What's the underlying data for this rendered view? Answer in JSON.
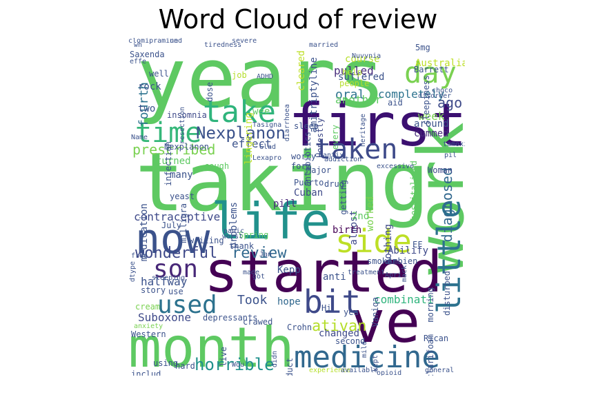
{
  "title": "Word Cloud of review",
  "words": [
    {
      "text": "years",
      "color": "#5ec962"
    },
    {
      "text": "taking",
      "color": "#5ec962"
    },
    {
      "text": "first",
      "color": "#3b0f70"
    },
    {
      "text": "work",
      "color": "#5ec962"
    },
    {
      "text": "started",
      "color": "#440154"
    },
    {
      "text": "ve",
      "color": "#440154"
    },
    {
      "text": "month",
      "color": "#5ec962"
    },
    {
      "text": "life",
      "color": "#21918c"
    },
    {
      "text": "now",
      "color": "#3b528b"
    },
    {
      "text": "medicine",
      "color": "#31688e"
    },
    {
      "text": "take",
      "color": "#2fb47c"
    },
    {
      "text": "time",
      "color": "#35b779"
    },
    {
      "text": "taken",
      "color": "#3e4a89"
    },
    {
      "text": "day",
      "color": "#7ad151"
    },
    {
      "text": "little",
      "color": "#2c728e"
    },
    {
      "text": "bit",
      "color": "#3e4989"
    },
    {
      "text": "used",
      "color": "#2c728e"
    },
    {
      "text": "side",
      "color": "#bddf26"
    },
    {
      "text": "son",
      "color": "#482878"
    },
    {
      "text": "Nexplanon",
      "color": "#3b528b"
    },
    {
      "text": "prescribed",
      "color": "#7ad151"
    },
    {
      "text": "wonderful",
      "color": "#3e4989"
    },
    {
      "text": "review",
      "color": "#31688e"
    },
    {
      "text": "horrible",
      "color": "#21918c"
    },
    {
      "text": "ativan",
      "color": "#b5de2b"
    },
    {
      "text": "diagnosed",
      "color": "#31688e"
    },
    {
      "text": "week",
      "color": "#7ad151"
    },
    {
      "text": "ago",
      "color": "#3e4a89"
    },
    {
      "text": "Took",
      "color": "#3b528b"
    },
    {
      "text": "oral",
      "color": "#2c728e"
    },
    {
      "text": "combinati",
      "color": "#2fb47c"
    },
    {
      "text": "completely",
      "color": "#2c728e"
    },
    {
      "text": "fourth",
      "color": "#2c728e"
    },
    {
      "text": "effect",
      "color": "#3b528b"
    },
    {
      "text": "another",
      "color": "#5ec962"
    },
    {
      "text": "pulled",
      "color": "#472d7b"
    },
    {
      "text": "rock",
      "color": "#3b528b"
    },
    {
      "text": "two",
      "color": "#3b528b"
    },
    {
      "text": "halfway",
      "color": "#3b528b"
    },
    {
      "text": "Suboxone",
      "color": "#3e4989"
    },
    {
      "text": "contraceptive",
      "color": "#3e4989"
    },
    {
      "text": "medication",
      "color": "#3b528b"
    },
    {
      "text": "nothing",
      "color": "#3e4989"
    },
    {
      "text": "pill",
      "color": "#482878"
    },
    {
      "text": "Abilify",
      "color": "#3e4989"
    },
    {
      "text": "hope",
      "color": "#31688e"
    },
    {
      "text": "changed",
      "color": "#3e4989"
    },
    {
      "text": "Kepp",
      "color": "#3b528b"
    },
    {
      "text": "anti",
      "color": "#3b528b"
    },
    {
      "text": "almost",
      "color": "#3e4989"
    },
    {
      "text": "turned",
      "color": "#5ec962"
    },
    {
      "text": "problems",
      "color": "#3b528b"
    },
    {
      "text": "many",
      "color": "#3b528b"
    },
    {
      "text": "2nd",
      "color": "#5ec962"
    },
    {
      "text": "birth",
      "color": "#440154"
    },
    {
      "text": "worked",
      "color": "#7ad151"
    },
    {
      "text": "Woman",
      "color": "#3e4989"
    },
    {
      "text": "around",
      "color": "#3b528b"
    },
    {
      "text": "cummed",
      "color": "#472d7b"
    },
    {
      "text": "suffered",
      "color": "#3b528b"
    },
    {
      "text": "course",
      "color": "#b5de2b"
    },
    {
      "text": "cleared",
      "color": "#bddf26"
    },
    {
      "text": "amitriptyline",
      "color": "#3b528b"
    },
    {
      "text": "sleepiness",
      "color": "#3b528b"
    },
    {
      "text": "wee",
      "color": "#5ec962"
    },
    {
      "text": "insomnia",
      "color": "#3e4989"
    },
    {
      "text": "resection",
      "color": "#3b528b"
    },
    {
      "text": "lingering",
      "color": "#bddf26"
    },
    {
      "text": "Saxenda",
      "color": "#3b528b"
    },
    {
      "text": "well",
      "color": "#3b528b"
    },
    {
      "text": "job",
      "color": "#b5de2b"
    },
    {
      "text": "dose",
      "color": "#3b528b"
    },
    {
      "text": "5mg",
      "color": "#3b528b"
    },
    {
      "text": "Australia",
      "color": "#bddf26"
    },
    {
      "text": "Barrett",
      "color": "#3b528b"
    },
    {
      "text": "Nexplanon",
      "color": "#3b528b"
    },
    {
      "text": "worry",
      "color": "#3b528b"
    },
    {
      "text": "form",
      "color": "#3b528b"
    },
    {
      "text": "Major",
      "color": "#3b528b"
    },
    {
      "text": "Puerto",
      "color": "#3b528b"
    },
    {
      "text": "Cuban",
      "color": "#3e4989"
    },
    {
      "text": "drug",
      "color": "#3b528b"
    },
    {
      "text": "getting",
      "color": "#3b528b"
    },
    {
      "text": "Ambien",
      "color": "#3b528b"
    },
    {
      "text": "EF",
      "color": "#3b528b"
    },
    {
      "text": "hospitalized",
      "color": "#5ec962"
    },
    {
      "text": "antibiotics",
      "color": "#3b528b"
    },
    {
      "text": "sleep",
      "color": "#3b528b"
    },
    {
      "text": "every",
      "color": "#5ec962"
    },
    {
      "text": "Honestly",
      "color": "#3e4989"
    },
    {
      "text": "aid",
      "color": "#3b528b"
    },
    {
      "text": "people",
      "color": "#b5de2b"
    },
    {
      "text": "help",
      "color": "#b5de2b"
    },
    {
      "text": "cough",
      "color": "#5ec962"
    },
    {
      "text": "infection",
      "color": "#3b528b"
    },
    {
      "text": "milligra",
      "color": "#3b528b"
    },
    {
      "text": "yeast",
      "color": "#3b528b"
    },
    {
      "text": "Spring",
      "color": "#5ec962"
    },
    {
      "text": "July",
      "color": "#3b528b"
    },
    {
      "text": "writing",
      "color": "#3b528b"
    },
    {
      "text": "thank",
      "color": "#3b528b"
    },
    {
      "text": "story",
      "color": "#3b528b"
    },
    {
      "text": "cream",
      "color": "#7ad151"
    },
    {
      "text": "Western",
      "color": "#3b528b"
    },
    {
      "text": "depressants",
      "color": "#3b528b"
    },
    {
      "text": "using",
      "color": "#3b528b"
    },
    {
      "text": "hard",
      "color": "#3b528b"
    },
    {
      "text": "includ",
      "color": "#3b528b"
    },
    {
      "text": "Crohn",
      "color": "#3b528b"
    },
    {
      "text": "live",
      "color": "#3b528b"
    },
    {
      "text": "product",
      "color": "#3b528b"
    },
    {
      "text": "second",
      "color": "#3b528b"
    },
    {
      "text": "mild",
      "color": "#3b528b"
    },
    {
      "text": "Rican",
      "color": "#3b528b"
    },
    {
      "text": "clarifoam",
      "color": "#3b528b"
    },
    {
      "text": "disturbed",
      "color": "#3b528b"
    },
    {
      "text": "morning",
      "color": "#3b528b"
    },
    {
      "text": "Vaniqa",
      "color": "#3b528b"
    },
    {
      "text": "yea",
      "color": "#3b528b"
    },
    {
      "text": "Hi",
      "color": "#3b528b"
    },
    {
      "text": "use",
      "color": "#3b528b"
    },
    {
      "text": "crawed",
      "color": "#3b528b"
    },
    {
      "text": "smoker",
      "color": "#3b528b"
    },
    {
      "text": "made",
      "color": "#3b528b"
    },
    {
      "text": "worst",
      "color": "#3b528b"
    },
    {
      "text": "panic",
      "color": "#3b528b"
    },
    {
      "text": "Tasigna",
      "color": "#3b528b"
    },
    {
      "text": "wh",
      "color": "#3b528b"
    },
    {
      "text": "und",
      "color": "#3b528b"
    },
    {
      "text": "tiredness",
      "color": "#3b528b"
    },
    {
      "text": "married",
      "color": "#3b528b"
    },
    {
      "text": "Nuvynia",
      "color": "#3b528b"
    },
    {
      "text": "choco",
      "color": "#3b528b"
    },
    {
      "text": "experience",
      "color": "#b5de2b"
    },
    {
      "text": "available",
      "color": "#3b528b"
    },
    {
      "text": "opioid",
      "color": "#3b528b"
    },
    {
      "text": "general",
      "color": "#3b528b"
    },
    {
      "text": "anxiety",
      "color": "#7ad151"
    },
    {
      "text": "severe",
      "color": "#3b528b"
    },
    {
      "text": "effe",
      "color": "#3b528b"
    },
    {
      "text": "ADHD",
      "color": "#3b528b"
    },
    {
      "text": "Lexapro",
      "color": "#3b528b"
    },
    {
      "text": "chantix",
      "color": "#3b528b"
    },
    {
      "text": "addiction",
      "color": "#3b528b"
    },
    {
      "text": "excessive",
      "color": "#3b528b"
    },
    {
      "text": "disorder",
      "color": "#3b528b"
    },
    {
      "text": "heritage",
      "color": "#3b528b"
    },
    {
      "text": "diarrhoea",
      "color": "#3b528b"
    },
    {
      "text": "Glad",
      "color": "#3b528b"
    },
    {
      "text": "Jan",
      "color": "#3b528b"
    },
    {
      "text": "free",
      "color": "#3b528b"
    },
    {
      "text": "sleeping",
      "color": "#3b528b"
    },
    {
      "text": "treatment",
      "color": "#3b528b"
    },
    {
      "text": "Apri",
      "color": "#3b528b"
    },
    {
      "text": "mack",
      "color": "#3b528b"
    },
    {
      "text": "kept",
      "color": "#3b528b"
    },
    {
      "text": "Wou",
      "color": "#3b528b"
    },
    {
      "text": "didn",
      "color": "#3b528b"
    },
    {
      "text": "got",
      "color": "#3b528b"
    },
    {
      "text": "Name",
      "color": "#3b528b"
    },
    {
      "text": "tamoxifen",
      "color": "#3b528b"
    },
    {
      "text": "pil",
      "color": "#3b528b"
    },
    {
      "text": "dtype",
      "color": "#3b528b"
    },
    {
      "text": "clomipramine",
      "color": "#3b528b"
    }
  ]
}
